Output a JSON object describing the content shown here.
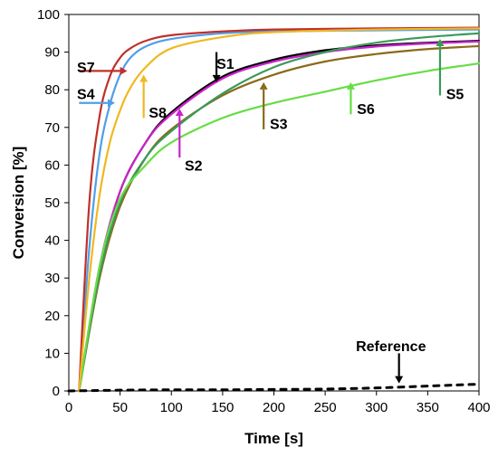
{
  "chart_data": {
    "type": "line",
    "xlabel": "Time [s]",
    "ylabel": "Conversion [%]",
    "xlim": [
      0,
      400
    ],
    "ylim": [
      0,
      100
    ],
    "xticks": [
      0,
      50,
      100,
      150,
      200,
      250,
      300,
      350,
      400
    ],
    "yticks": [
      0,
      10,
      20,
      30,
      40,
      50,
      60,
      70,
      80,
      90,
      100
    ],
    "grid": false,
    "legend": "none (direct labels with arrows)",
    "series": [
      {
        "name": "S1",
        "color": "#000000",
        "x": [
          10,
          30,
          50,
          75,
          100,
          150,
          200,
          250,
          300,
          350,
          400
        ],
        "y": [
          0,
          32,
          53,
          66,
          74,
          83.5,
          88,
          90.5,
          91.8,
          92.5,
          93
        ]
      },
      {
        "name": "S2",
        "color": "#cc22cc",
        "x": [
          10,
          30,
          50,
          75,
          100,
          150,
          200,
          250,
          300,
          350,
          400
        ],
        "y": [
          0,
          33,
          53,
          66,
          73.5,
          83,
          87.5,
          90,
          91.5,
          92.3,
          92.8
        ]
      },
      {
        "name": "S3",
        "color": "#8a6a1a",
        "x": [
          10,
          30,
          50,
          75,
          100,
          150,
          200,
          250,
          300,
          350,
          400
        ],
        "y": [
          0,
          30,
          49,
          62,
          69.5,
          78.5,
          84,
          87.5,
          89.5,
          90.8,
          91.6
        ]
      },
      {
        "name": "S4",
        "color": "#4f9fe8",
        "x": [
          10,
          20,
          30,
          40,
          50,
          60,
          75,
          100,
          150,
          200,
          300,
          400
        ],
        "y": [
          0,
          38,
          63,
          76,
          84,
          88.5,
          91.5,
          93.5,
          95,
          95.5,
          95.8,
          96
        ]
      },
      {
        "name": "S5",
        "color": "#3a9a5a",
        "x": [
          10,
          30,
          50,
          75,
          100,
          150,
          200,
          250,
          300,
          350,
          400
        ],
        "y": [
          0,
          31,
          50,
          62,
          69,
          79,
          86,
          90,
          92.5,
          94,
          95
        ]
      },
      {
        "name": "S6",
        "color": "#66dd44",
        "x": [
          10,
          30,
          50,
          75,
          100,
          150,
          200,
          250,
          300,
          350,
          400
        ],
        "y": [
          0,
          33,
          51,
          60,
          66,
          72.5,
          76.5,
          79.5,
          82.5,
          85,
          87
        ]
      },
      {
        "name": "S7",
        "color": "#c0302a",
        "x": [
          10,
          20,
          30,
          40,
          50,
          60,
          75,
          100,
          150,
          200,
          300,
          400
        ],
        "y": [
          0,
          50,
          73,
          83.5,
          88.5,
          91,
          93,
          94.5,
          95.5,
          96,
          96.3,
          96.5
        ]
      },
      {
        "name": "S8",
        "color": "#f0b820",
        "x": [
          10,
          20,
          30,
          40,
          50,
          60,
          75,
          100,
          150,
          200,
          300,
          400
        ],
        "y": [
          0,
          30,
          52,
          66,
          74.5,
          80.5,
          86,
          91,
          94,
          95.3,
          96,
          96.3
        ]
      },
      {
        "name": "Reference",
        "color": "#000000",
        "dashed": true,
        "x": [
          0,
          50,
          100,
          150,
          200,
          250,
          300,
          350,
          400
        ],
        "y": [
          0,
          0.2,
          0.3,
          0.3,
          0.4,
          0.5,
          0.8,
          1.3,
          1.8
        ]
      }
    ],
    "annotations": [
      {
        "text": "S1",
        "color": "#000000",
        "label_at": [
          144,
          87
        ],
        "arrow_from": [
          144,
          90
        ],
        "arrow_to": [
          144,
          82
        ]
      },
      {
        "text": "S2",
        "color": "#cc22cc",
        "label_at": [
          113,
          60
        ],
        "arrow_from": [
          108,
          62
        ],
        "arrow_to": [
          108,
          75
        ]
      },
      {
        "text": "S3",
        "color": "#8a6a1a",
        "label_at": [
          196,
          71
        ],
        "arrow_from": [
          190,
          69.5
        ],
        "arrow_to": [
          190,
          82
        ]
      },
      {
        "text": "S4",
        "color": "#4f9fe8",
        "label_at": [
          8,
          79
        ],
        "arrow_from": [
          10,
          76.5
        ],
        "arrow_to": [
          45,
          76.5
        ]
      },
      {
        "text": "S5",
        "color": "#3a9a5a",
        "label_at": [
          368,
          79
        ],
        "arrow_from": [
          362,
          78.5
        ],
        "arrow_to": [
          362,
          93.5
        ]
      },
      {
        "text": "S6",
        "color": "#66dd44",
        "label_at": [
          281,
          75
        ],
        "arrow_from": [
          275,
          73.5
        ],
        "arrow_to": [
          275,
          82
        ]
      },
      {
        "text": "S7",
        "color": "#c0302a",
        "label_at": [
          8,
          86
        ],
        "arrow_from": [
          10,
          85
        ],
        "arrow_to": [
          57,
          85
        ]
      },
      {
        "text": "S8",
        "color": "#f0b820",
        "label_at": [
          78,
          74
        ],
        "arrow_from": [
          73,
          72.5
        ],
        "arrow_to": [
          73,
          84
        ]
      },
      {
        "text": "Reference",
        "color": "#000000",
        "label_at": [
          280,
          12
        ],
        "arrow_from": [
          322,
          10
        ],
        "arrow_to": [
          322,
          2
        ]
      }
    ]
  }
}
